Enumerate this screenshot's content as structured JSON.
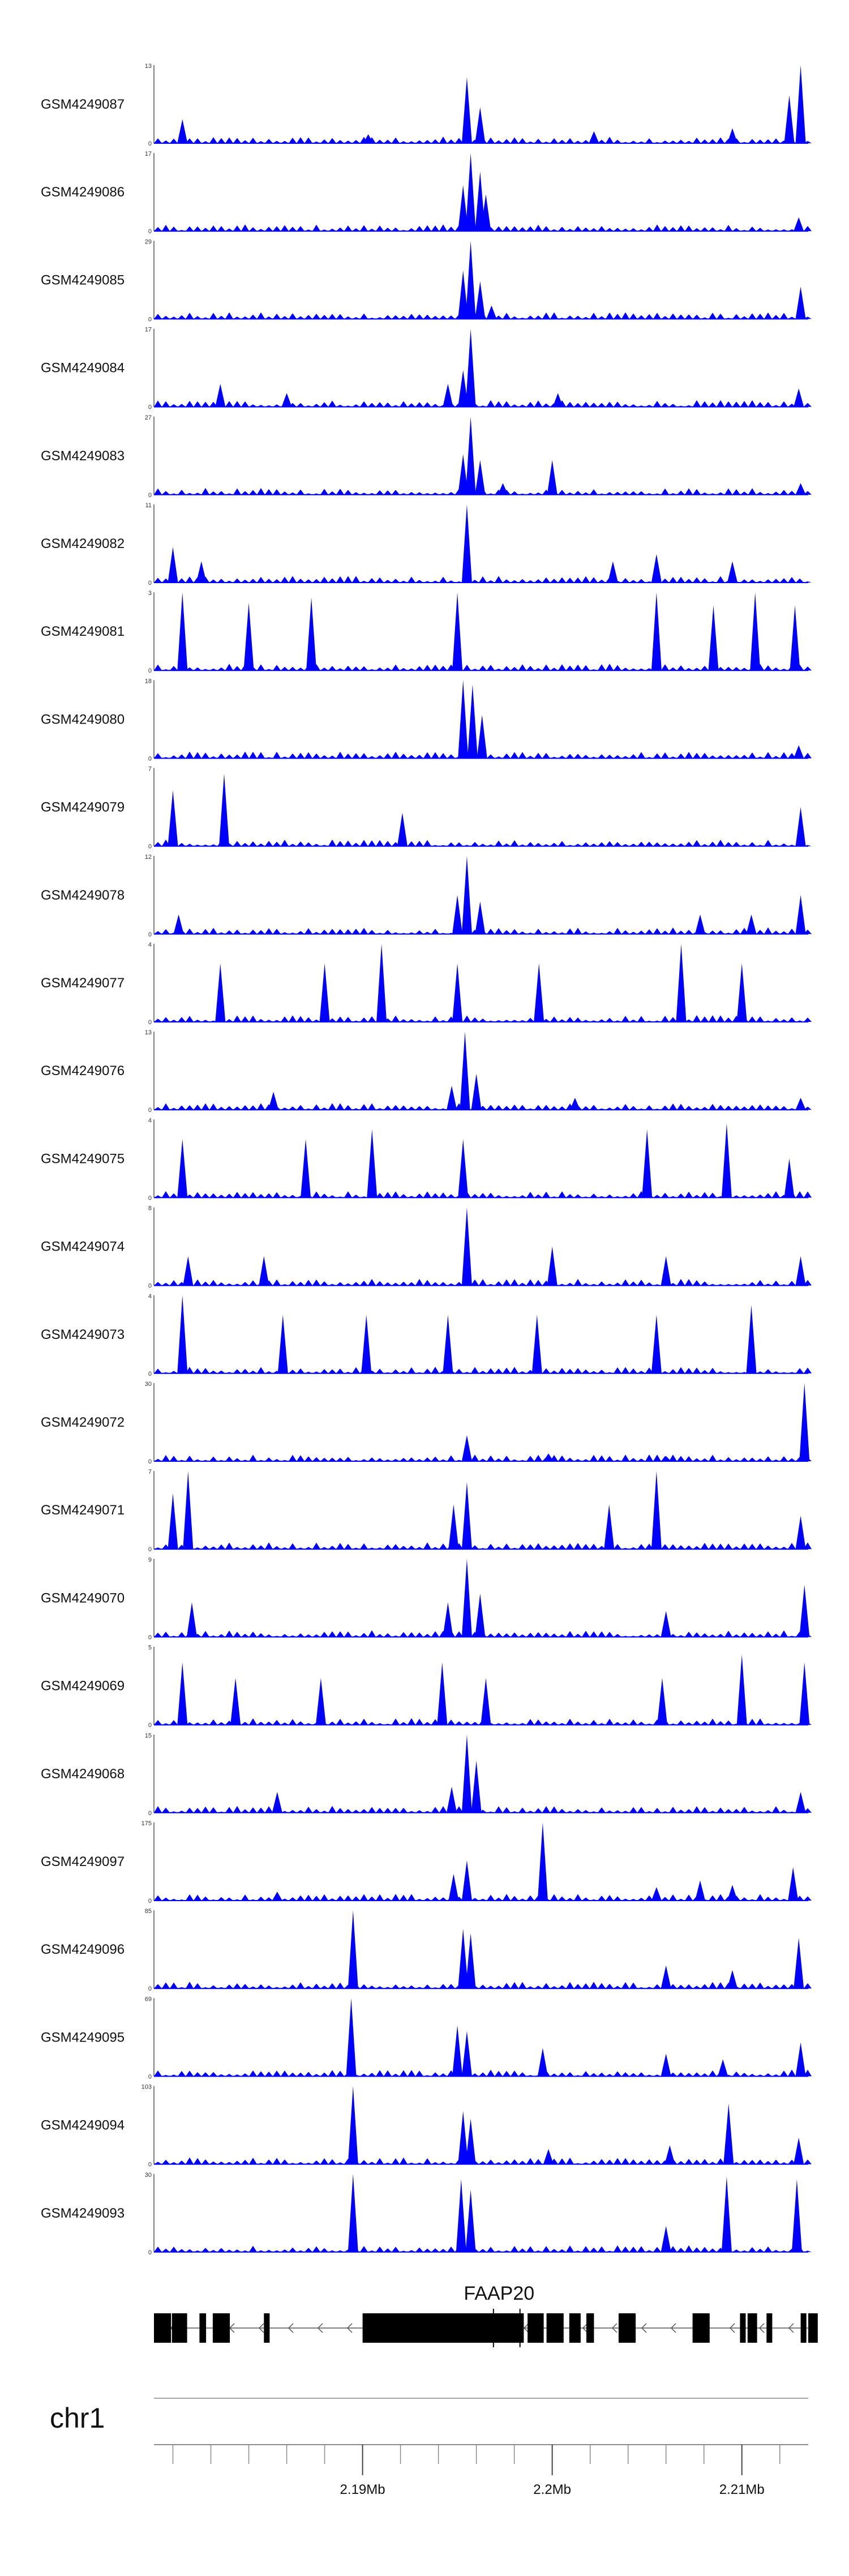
{
  "chart_data": {
    "type": "area",
    "series_color": "#0000ff",
    "region": {
      "chromosome": "chr1",
      "start_mb": 2.179,
      "end_mb": 2.2135
    },
    "tracks": [
      {
        "name": "GSM4249087",
        "ymax": "13",
        "peaks": [
          [
            2.1805,
            4
          ],
          [
            2.1903,
            1.5
          ],
          [
            2.1955,
            11
          ],
          [
            2.1962,
            6
          ],
          [
            2.2022,
            2
          ],
          [
            2.2095,
            2.5
          ],
          [
            2.2125,
            8
          ],
          [
            2.2131,
            13
          ]
        ]
      },
      {
        "name": "GSM4249086",
        "ymax": "17",
        "peaks": [
          [
            2.1953,
            10
          ],
          [
            2.1957,
            17
          ],
          [
            2.1962,
            13
          ],
          [
            2.1965,
            8
          ],
          [
            2.213,
            3
          ]
        ]
      },
      {
        "name": "GSM4249085",
        "ymax": "29",
        "peaks": [
          [
            2.1953,
            18
          ],
          [
            2.1957,
            29
          ],
          [
            2.1962,
            14
          ],
          [
            2.1968,
            5
          ],
          [
            2.2131,
            12
          ]
        ]
      },
      {
        "name": "GSM4249084",
        "ymax": "17",
        "peaks": [
          [
            2.1825,
            5
          ],
          [
            2.186,
            3
          ],
          [
            2.1945,
            5
          ],
          [
            2.1953,
            8
          ],
          [
            2.1957,
            17
          ],
          [
            2.2003,
            3
          ],
          [
            2.213,
            4
          ]
        ]
      },
      {
        "name": "GSM4249083",
        "ymax": "27",
        "peaks": [
          [
            2.1953,
            14
          ],
          [
            2.1957,
            27
          ],
          [
            2.1962,
            12
          ],
          [
            2.1974,
            4
          ],
          [
            2.2,
            12
          ],
          [
            2.2131,
            4
          ]
        ]
      },
      {
        "name": "GSM4249082",
        "ymax": "11",
        "peaks": [
          [
            2.18,
            5
          ],
          [
            2.1815,
            3
          ],
          [
            2.1955,
            11
          ],
          [
            2.2032,
            3
          ],
          [
            2.2055,
            4
          ],
          [
            2.2095,
            3
          ]
        ]
      },
      {
        "name": "GSM4249081",
        "ymax": "3",
        "peaks": [
          [
            2.1805,
            3
          ],
          [
            2.184,
            2.6
          ],
          [
            2.1873,
            2.8
          ],
          [
            2.195,
            3
          ],
          [
            2.2055,
            3
          ],
          [
            2.2085,
            2.5
          ],
          [
            2.2107,
            3
          ],
          [
            2.2128,
            2.5
          ]
        ]
      },
      {
        "name": "GSM4249080",
        "ymax": "18",
        "peaks": [
          [
            2.1953,
            18
          ],
          [
            2.1958,
            17
          ],
          [
            2.1963,
            10
          ],
          [
            2.213,
            3
          ]
        ]
      },
      {
        "name": "GSM4249079",
        "ymax": "7",
        "peaks": [
          [
            2.18,
            5
          ],
          [
            2.1827,
            6.5
          ],
          [
            2.1921,
            3
          ],
          [
            2.2131,
            3.5
          ]
        ]
      },
      {
        "name": "GSM4249078",
        "ymax": "12",
        "peaks": [
          [
            2.1803,
            3
          ],
          [
            2.195,
            6
          ],
          [
            2.1955,
            12
          ],
          [
            2.1962,
            5
          ],
          [
            2.2078,
            3
          ],
          [
            2.2105,
            3
          ],
          [
            2.2131,
            6
          ]
        ]
      },
      {
        "name": "GSM4249077",
        "ymax": "4",
        "peaks": [
          [
            2.1825,
            3
          ],
          [
            2.188,
            3
          ],
          [
            2.191,
            4
          ],
          [
            2.195,
            3
          ],
          [
            2.1993,
            3
          ],
          [
            2.2068,
            4
          ],
          [
            2.21,
            3
          ]
        ]
      },
      {
        "name": "GSM4249076",
        "ymax": "13",
        "peaks": [
          [
            2.1853,
            3
          ],
          [
            2.1947,
            4
          ],
          [
            2.1954,
            13
          ],
          [
            2.196,
            6
          ],
          [
            2.2012,
            2
          ],
          [
            2.2131,
            2
          ]
        ]
      },
      {
        "name": "GSM4249075",
        "ymax": "4",
        "peaks": [
          [
            2.1805,
            3
          ],
          [
            2.187,
            3
          ],
          [
            2.1905,
            3.5
          ],
          [
            2.1953,
            3
          ],
          [
            2.205,
            3.5
          ],
          [
            2.2092,
            3.8
          ],
          [
            2.2125,
            2
          ]
        ]
      },
      {
        "name": "GSM4249074",
        "ymax": "8",
        "peaks": [
          [
            2.1808,
            3
          ],
          [
            2.1848,
            3
          ],
          [
            2.1955,
            8
          ],
          [
            2.2,
            4
          ],
          [
            2.206,
            3
          ],
          [
            2.2131,
            3
          ]
        ]
      },
      {
        "name": "GSM4249073",
        "ymax": "4",
        "peaks": [
          [
            2.1805,
            4
          ],
          [
            2.1858,
            3
          ],
          [
            2.1902,
            3
          ],
          [
            2.1945,
            3
          ],
          [
            2.1992,
            3
          ],
          [
            2.2055,
            3
          ],
          [
            2.2105,
            3.5
          ]
        ]
      },
      {
        "name": "GSM4249072",
        "ymax": "30",
        "peaks": [
          [
            2.1955,
            10
          ],
          [
            2.1998,
            3
          ],
          [
            2.206,
            2
          ],
          [
            2.2133,
            30
          ]
        ]
      },
      {
        "name": "GSM4249071",
        "ymax": "7",
        "peaks": [
          [
            2.18,
            5
          ],
          [
            2.1808,
            7
          ],
          [
            2.1948,
            4
          ],
          [
            2.1955,
            6
          ],
          [
            2.203,
            4
          ],
          [
            2.2055,
            7
          ],
          [
            2.2131,
            3
          ]
        ]
      },
      {
        "name": "GSM4249070",
        "ymax": "9",
        "peaks": [
          [
            2.181,
            4
          ],
          [
            2.1945,
            4
          ],
          [
            2.1955,
            9
          ],
          [
            2.1962,
            5
          ],
          [
            2.206,
            3
          ],
          [
            2.2133,
            6
          ]
        ]
      },
      {
        "name": "GSM4249069",
        "ymax": "5",
        "peaks": [
          [
            2.1805,
            4
          ],
          [
            2.1833,
            3
          ],
          [
            2.1878,
            3
          ],
          [
            2.1942,
            4
          ],
          [
            2.1965,
            3
          ],
          [
            2.2058,
            3
          ],
          [
            2.21,
            4.5
          ],
          [
            2.2133,
            4
          ]
        ]
      },
      {
        "name": "GSM4249068",
        "ymax": "15",
        "peaks": [
          [
            2.1855,
            4
          ],
          [
            2.1947,
            5
          ],
          [
            2.1955,
            15
          ],
          [
            2.196,
            10
          ],
          [
            2.2131,
            4
          ]
        ]
      },
      {
        "name": "GSM4249097",
        "ymax": "175",
        "peaks": [
          [
            2.1855,
            20
          ],
          [
            2.1948,
            60
          ],
          [
            2.1955,
            90
          ],
          [
            2.1995,
            175
          ],
          [
            2.2055,
            30
          ],
          [
            2.2078,
            45
          ],
          [
            2.2095,
            35
          ],
          [
            2.2127,
            75
          ]
        ]
      },
      {
        "name": "GSM4249096",
        "ymax": "85",
        "peaks": [
          [
            2.1895,
            85
          ],
          [
            2.1953,
            65
          ],
          [
            2.1957,
            60
          ],
          [
            2.206,
            25
          ],
          [
            2.2095,
            20
          ],
          [
            2.213,
            55
          ]
        ]
      },
      {
        "name": "GSM4249095",
        "ymax": "69",
        "peaks": [
          [
            2.1894,
            69
          ],
          [
            2.195,
            45
          ],
          [
            2.1955,
            40
          ],
          [
            2.1995,
            25
          ],
          [
            2.206,
            20
          ],
          [
            2.209,
            15
          ],
          [
            2.2131,
            30
          ]
        ]
      },
      {
        "name": "GSM4249094",
        "ymax": "103",
        "peaks": [
          [
            2.1895,
            103
          ],
          [
            2.1953,
            70
          ],
          [
            2.1957,
            60
          ],
          [
            2.1998,
            20
          ],
          [
            2.2062,
            25
          ],
          [
            2.2093,
            80
          ],
          [
            2.213,
            35
          ]
        ]
      },
      {
        "name": "GSM4249093",
        "ymax": "30",
        "peaks": [
          [
            2.1895,
            30
          ],
          [
            2.1952,
            28
          ],
          [
            2.1957,
            24
          ],
          [
            2.206,
            10
          ],
          [
            2.2092,
            29
          ],
          [
            2.2129,
            28
          ]
        ]
      }
    ],
    "gene": {
      "name": "FAAP20",
      "strand": "-",
      "exons": [
        [
          2.179,
          2.1799
        ],
        [
          2.17995,
          2.18075
        ],
        [
          2.1814,
          2.18175
        ],
        [
          2.1821,
          2.183
        ],
        [
          2.1848,
          2.1851
        ],
        [
          2.19,
          2.1985
        ],
        [
          2.1987,
          2.19955
        ],
        [
          2.1997,
          2.2006
        ],
        [
          2.2009,
          2.2015
        ],
        [
          2.2018,
          2.2022
        ],
        [
          2.2035,
          2.2044
        ],
        [
          2.2074,
          2.2083
        ],
        [
          2.2099,
          2.2102
        ],
        [
          2.2103,
          2.2108
        ],
        [
          2.2113,
          2.2116
        ],
        [
          2.2131,
          2.2134
        ],
        [
          2.2135,
          2.214
        ]
      ]
    },
    "chromosome": "chr1",
    "x_ticks": [
      "2.19Mb",
      "2.2Mb",
      "2.21Mb"
    ],
    "x_tick_values": [
      2.19,
      2.2,
      2.21
    ]
  }
}
